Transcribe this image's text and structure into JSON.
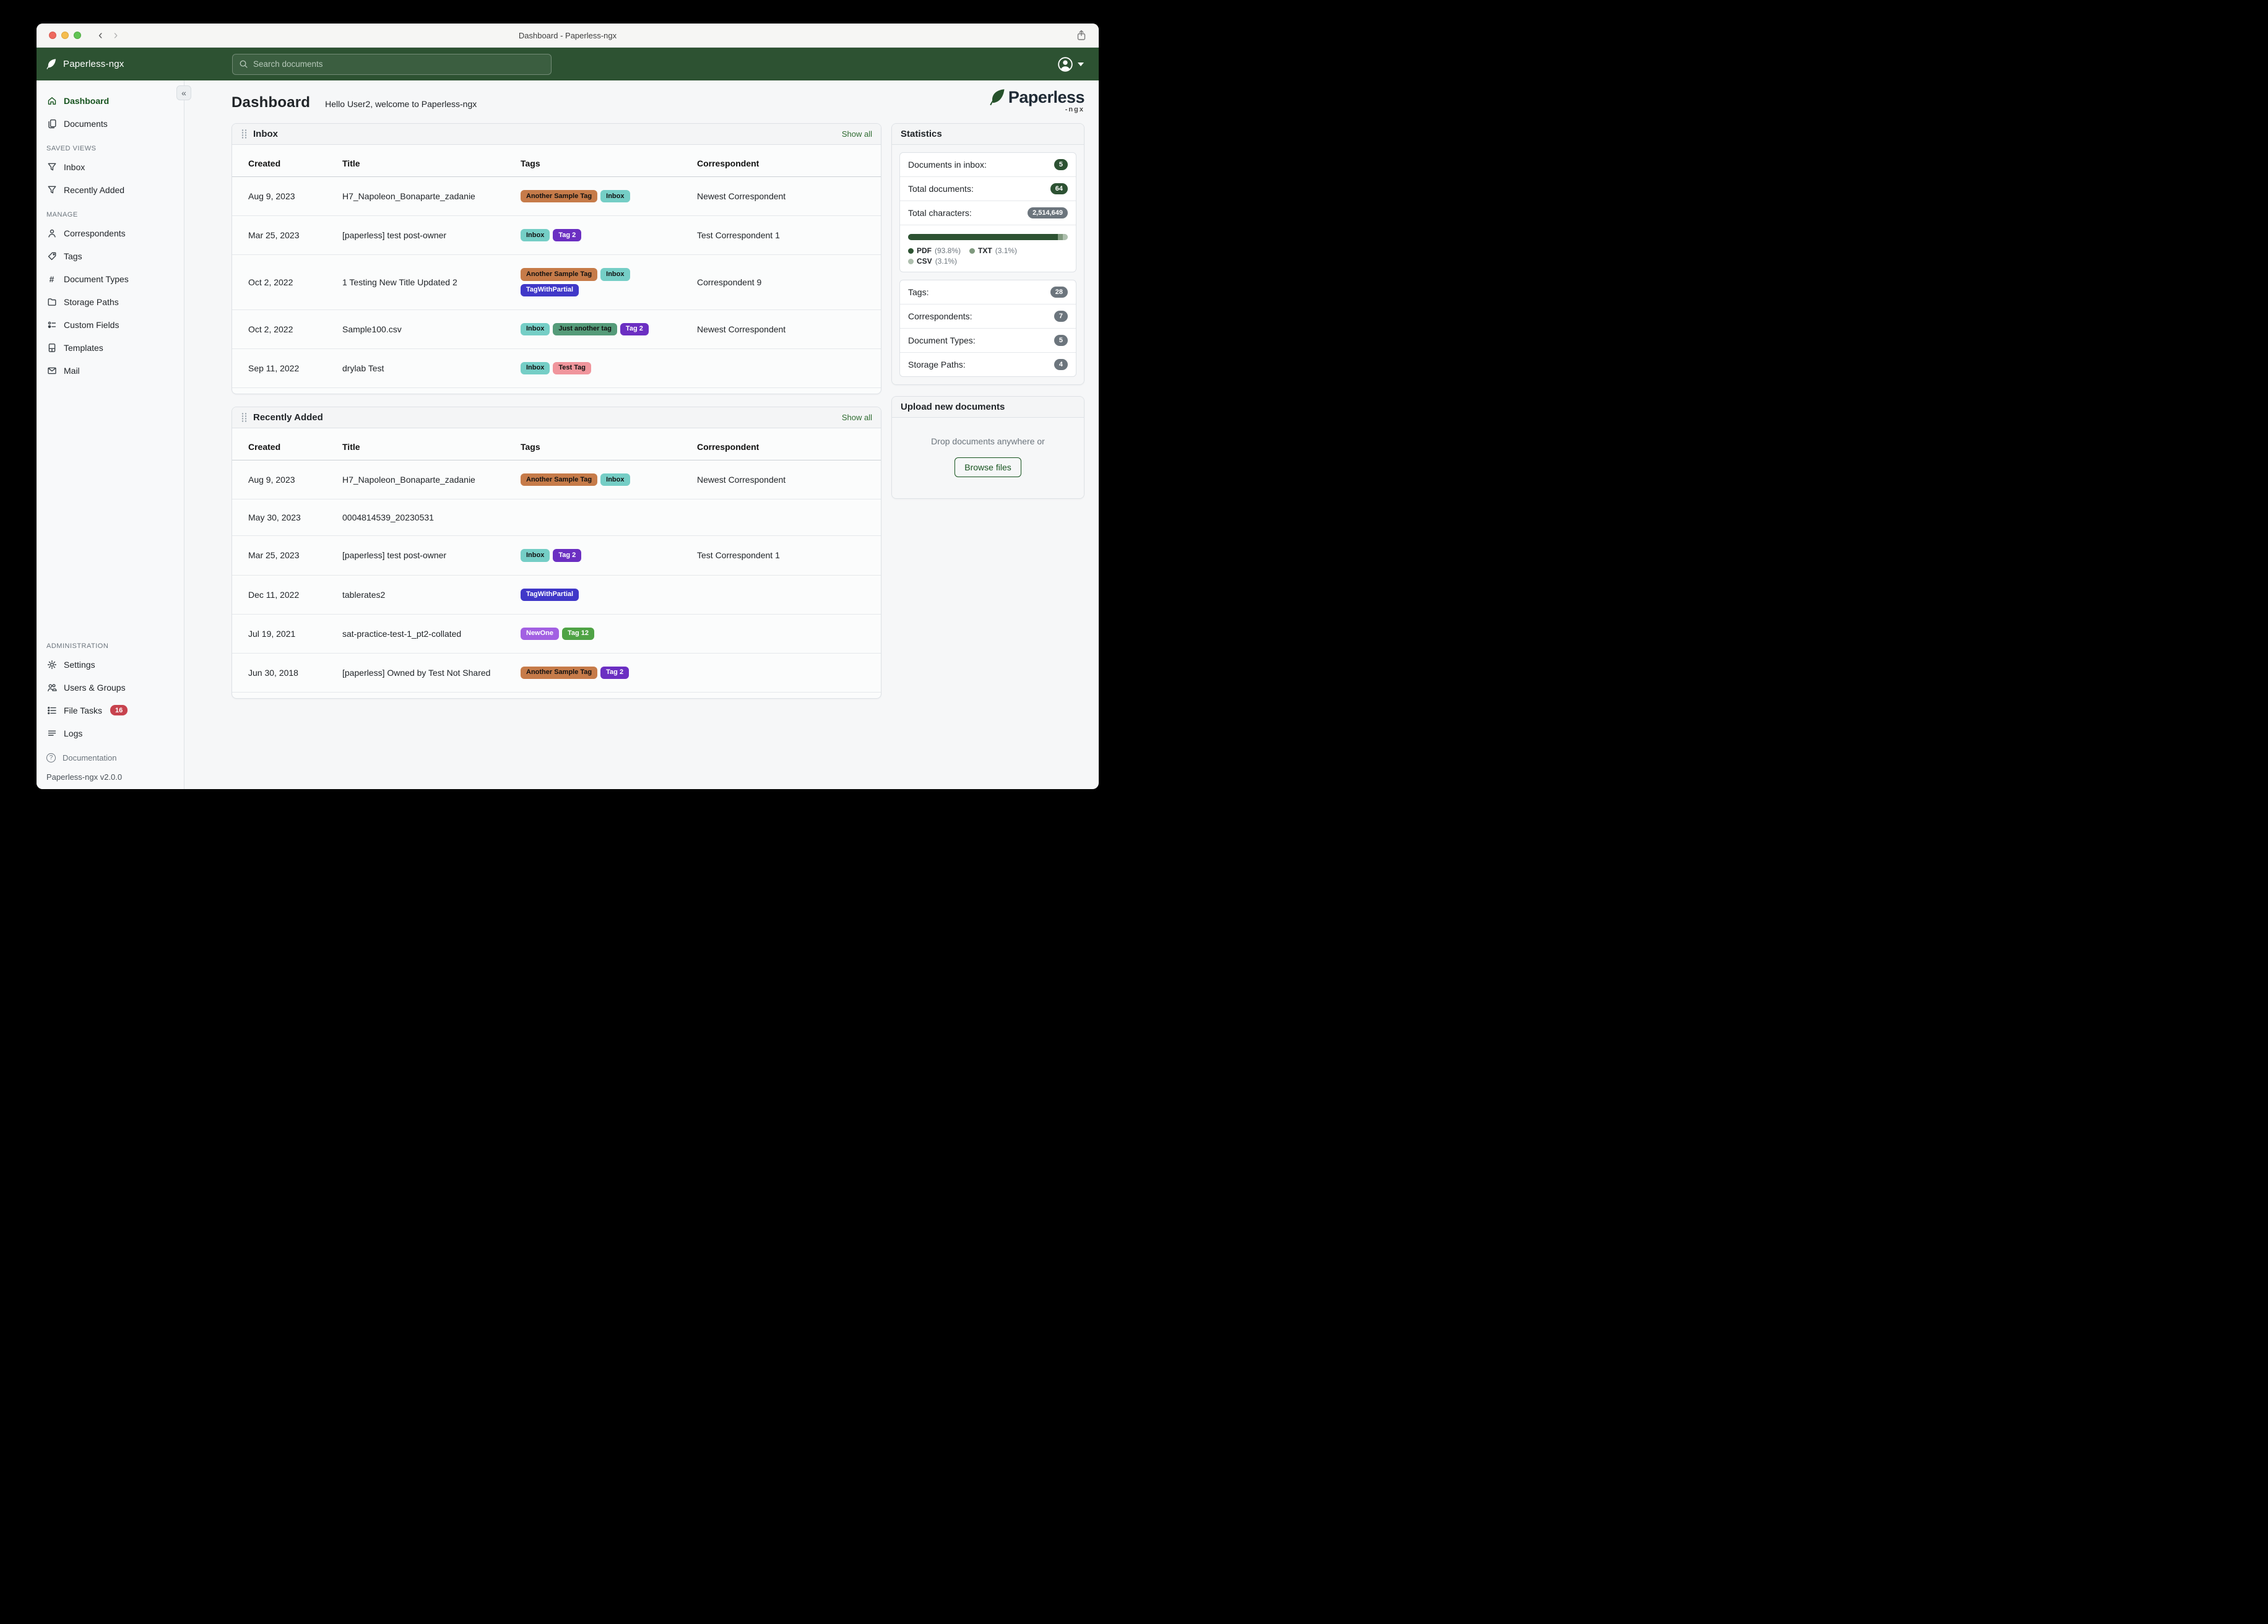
{
  "window": {
    "title": "Dashboard - Paperless-ngx"
  },
  "navbar": {
    "brand": "Paperless-ngx",
    "search_placeholder": "Search documents"
  },
  "sidebar": {
    "primary": [
      {
        "label": "Dashboard",
        "icon": "home",
        "active": true
      },
      {
        "label": "Documents",
        "icon": "documents",
        "active": false
      }
    ],
    "sections": [
      {
        "title": "SAVED VIEWS",
        "items": [
          {
            "label": "Inbox",
            "icon": "filter"
          },
          {
            "label": "Recently Added",
            "icon": "filter"
          }
        ]
      },
      {
        "title": "MANAGE",
        "items": [
          {
            "label": "Correspondents",
            "icon": "person"
          },
          {
            "label": "Tags",
            "icon": "tag"
          },
          {
            "label": "Document Types",
            "icon": "hash"
          },
          {
            "label": "Storage Paths",
            "icon": "folder"
          },
          {
            "label": "Custom Fields",
            "icon": "custom-fields"
          },
          {
            "label": "Templates",
            "icon": "template"
          },
          {
            "label": "Mail",
            "icon": "mail"
          }
        ]
      },
      {
        "title": "ADMINISTRATION",
        "items": [
          {
            "label": "Settings",
            "icon": "gear"
          },
          {
            "label": "Users & Groups",
            "icon": "users"
          },
          {
            "label": "File Tasks",
            "icon": "tasks",
            "badge": "16"
          },
          {
            "label": "Logs",
            "icon": "logs"
          }
        ]
      }
    ],
    "footer": {
      "documentation": "Documentation",
      "version": "Paperless-ngx v2.0.0"
    }
  },
  "header": {
    "title": "Dashboard",
    "subtitle": "Hello User2, welcome to Paperless-ngx",
    "logo_word": "Paperless",
    "logo_sub": "-ngx"
  },
  "tag_styles": {
    "Another Sample Tag": {
      "bg": "#C67B49",
      "fg": "#111111"
    },
    "Inbox": {
      "bg": "#75CEC6",
      "fg": "#111111"
    },
    "Tag 2": {
      "bg": "#6B2FC2",
      "fg": "#FFFFFF"
    },
    "TagWithPartial": {
      "bg": "#4038C8",
      "fg": "#FFFFFF"
    },
    "Just another tag": {
      "bg": "#559B79",
      "fg": "#111111"
    },
    "Test Tag": {
      "bg": "#F0959C",
      "fg": "#111111"
    },
    "NewOne": {
      "bg": "#A260E2",
      "fg": "#FFFFFF"
    },
    "Tag 12": {
      "bg": "#4FA345",
      "fg": "#FFFFFF"
    }
  },
  "tables": [
    {
      "id": "inbox",
      "title": "Inbox",
      "show_all": "Show all",
      "columns": [
        "Created",
        "Title",
        "Tags",
        "Correspondent"
      ],
      "rows": [
        {
          "created": "Aug 9, 2023",
          "title": "H7_Napoleon_Bonaparte_zadanie",
          "tags": [
            "Another Sample Tag",
            "Inbox"
          ],
          "correspondent": "Newest Correspondent"
        },
        {
          "created": "Mar 25, 2023",
          "title": "[paperless] test post-owner",
          "tags": [
            "Inbox",
            "Tag 2"
          ],
          "correspondent": "Test Correspondent 1"
        },
        {
          "created": "Oct 2, 2022",
          "title": "1 Testing New Title Updated 2",
          "tags": [
            "Another Sample Tag",
            "Inbox",
            "TagWithPartial"
          ],
          "correspondent": "Correspondent 9"
        },
        {
          "created": "Oct 2, 2022",
          "title": "Sample100.csv",
          "tags": [
            "Inbox",
            "Just another tag",
            "Tag 2"
          ],
          "correspondent": "Newest Correspondent"
        },
        {
          "created": "Sep 11, 2022",
          "title": "drylab Test",
          "tags": [
            "Inbox",
            "Test Tag"
          ],
          "correspondent": ""
        }
      ]
    },
    {
      "id": "recently-added",
      "title": "Recently Added",
      "show_all": "Show all",
      "columns": [
        "Created",
        "Title",
        "Tags",
        "Correspondent"
      ],
      "rows": [
        {
          "created": "Aug 9, 2023",
          "title": "H7_Napoleon_Bonaparte_zadanie",
          "tags": [
            "Another Sample Tag",
            "Inbox"
          ],
          "correspondent": "Newest Correspondent"
        },
        {
          "created": "May 30, 2023",
          "title": "0004814539_20230531",
          "tags": [],
          "correspondent": ""
        },
        {
          "created": "Mar 25, 2023",
          "title": "[paperless] test post-owner",
          "tags": [
            "Inbox",
            "Tag 2"
          ],
          "correspondent": "Test Correspondent 1"
        },
        {
          "created": "Dec 11, 2022",
          "title": "tablerates2",
          "tags": [
            "TagWithPartial"
          ],
          "correspondent": ""
        },
        {
          "created": "Jul 19, 2021",
          "title": "sat-practice-test-1_pt2-collated",
          "tags": [
            "NewOne",
            "Tag 12"
          ],
          "correspondent": ""
        },
        {
          "created": "Jun 30, 2018",
          "title": "[paperless] Owned by Test Not Shared",
          "tags": [
            "Another Sample Tag",
            "Tag 2"
          ],
          "correspondent": ""
        }
      ]
    }
  ],
  "statistics": {
    "title": "Statistics",
    "rows": [
      {
        "label": "Documents in inbox:",
        "value": "5",
        "badge": "green"
      },
      {
        "label": "Total documents:",
        "value": "64",
        "badge": "green"
      },
      {
        "label": "Total characters:",
        "value": "2,514,649",
        "badge": "gray"
      }
    ],
    "file_types": {
      "segments": [
        {
          "label": "PDF",
          "pct_text": "(93.8%)",
          "pct": 93.8,
          "color": "#2D5232"
        },
        {
          "label": "TXT",
          "pct_text": "(3.1%)",
          "pct": 3.1,
          "color": "#7F997E"
        },
        {
          "label": "CSV",
          "pct_text": "(3.1%)",
          "pct": 3.1,
          "color": "#AEBFAE"
        }
      ]
    },
    "counts": [
      {
        "label": "Tags:",
        "value": "28",
        "badge": "gray"
      },
      {
        "label": "Correspondents:",
        "value": "7",
        "badge": "gray"
      },
      {
        "label": "Document Types:",
        "value": "5",
        "badge": "gray"
      },
      {
        "label": "Storage Paths:",
        "value": "4",
        "badge": "gray"
      }
    ]
  },
  "upload": {
    "title": "Upload new documents",
    "hint": "Drop documents anywhere or",
    "button": "Browse files"
  }
}
